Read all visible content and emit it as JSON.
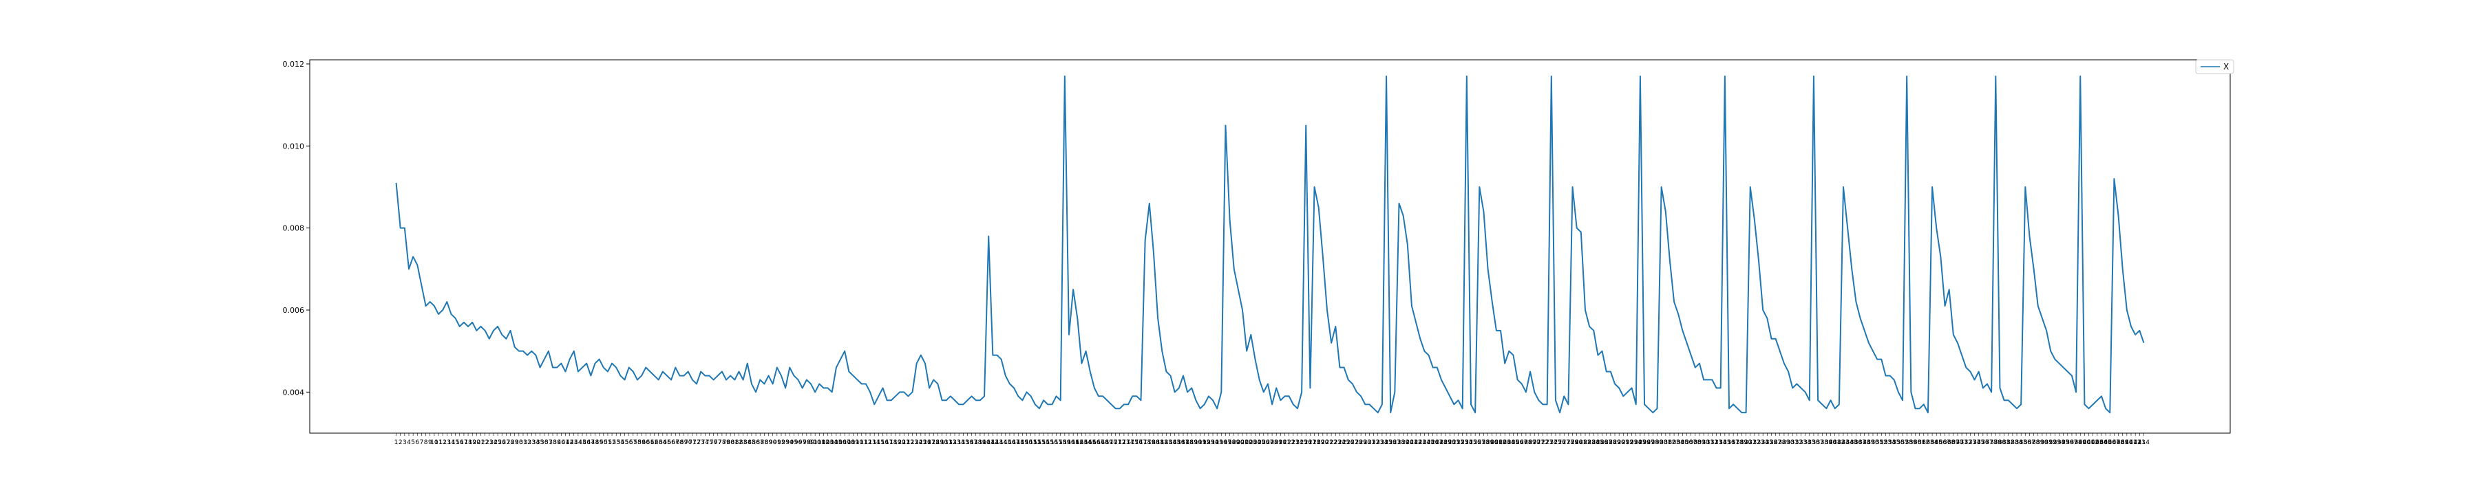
{
  "chart_data": {
    "type": "line",
    "title": "",
    "xlabel": "",
    "ylabel": "",
    "ylim": [
      0.003,
      0.0121
    ],
    "yticks": [
      0.004,
      0.006,
      0.008,
      0.01,
      0.012
    ],
    "ytick_labels": [
      "0.004",
      "0.006",
      "0.008",
      "0.010",
      "0.012"
    ],
    "grid": false,
    "legend": {
      "position": "top-right",
      "entries": [
        "X"
      ]
    },
    "colors": {
      "series": "#1f77b4",
      "axes": "#000000",
      "background": "#ffffff"
    },
    "series": [
      {
        "name": "X",
        "x_start": 1,
        "values": [
          0.0091,
          0.008,
          0.008,
          0.007,
          0.0073,
          0.0071,
          0.0066,
          0.0061,
          0.0062,
          0.0061,
          0.0059,
          0.006,
          0.0062,
          0.0059,
          0.0058,
          0.0056,
          0.0057,
          0.0056,
          0.0057,
          0.0055,
          0.0056,
          0.0055,
          0.0053,
          0.0055,
          0.0056,
          0.0054,
          0.0053,
          0.0055,
          0.0051,
          0.005,
          0.005,
          0.0049,
          0.005,
          0.0049,
          0.0046,
          0.0048,
          0.005,
          0.0046,
          0.0046,
          0.0047,
          0.0045,
          0.0048,
          0.005,
          0.0045,
          0.0046,
          0.0047,
          0.0044,
          0.0047,
          0.0048,
          0.0046,
          0.0045,
          0.0047,
          0.0046,
          0.0044,
          0.0043,
          0.0046,
          0.0045,
          0.0043,
          0.0044,
          0.0046,
          0.0045,
          0.0044,
          0.0043,
          0.0045,
          0.0044,
          0.0043,
          0.0046,
          0.0044,
          0.0044,
          0.0045,
          0.0043,
          0.0042,
          0.0045,
          0.0044,
          0.0044,
          0.0043,
          0.0044,
          0.0045,
          0.0043,
          0.0044,
          0.0043,
          0.0045,
          0.0043,
          0.0047,
          0.0042,
          0.004,
          0.0043,
          0.0042,
          0.0044,
          0.0042,
          0.0046,
          0.0044,
          0.0041,
          0.0046,
          0.0044,
          0.0043,
          0.0041,
          0.0043,
          0.0042,
          0.004,
          0.0042,
          0.0041,
          0.0041,
          0.004,
          0.0046,
          0.0048,
          0.005,
          0.0045,
          0.0044,
          0.0043,
          0.0042,
          0.0042,
          0.004,
          0.0037,
          0.0039,
          0.0041,
          0.0038,
          0.0038,
          0.0039,
          0.004,
          0.004,
          0.0039,
          0.004,
          0.0047,
          0.0049,
          0.0047,
          0.0041,
          0.0043,
          0.0042,
          0.0038,
          0.0038,
          0.0039,
          0.0038,
          0.0037,
          0.0037,
          0.0038,
          0.0039,
          0.0038,
          0.0038,
          0.0039,
          0.0078,
          0.0049,
          0.0049,
          0.0048,
          0.0044,
          0.0042,
          0.0041,
          0.0039,
          0.0038,
          0.004,
          0.0039,
          0.0037,
          0.0036,
          0.0038,
          0.0037,
          0.0037,
          0.0039,
          0.0038,
          0.0117,
          0.0054,
          0.0065,
          0.0058,
          0.0047,
          0.005,
          0.0045,
          0.0041,
          0.0039,
          0.0039,
          0.0038,
          0.0037,
          0.0036,
          0.0036,
          0.0037,
          0.0037,
          0.0039,
          0.0039,
          0.0038,
          0.0077,
          0.0086,
          0.0074,
          0.0058,
          0.005,
          0.0045,
          0.0044,
          0.004,
          0.0041,
          0.0044,
          0.004,
          0.0041,
          0.0038,
          0.0036,
          0.0037,
          0.0039,
          0.0038,
          0.0036,
          0.004,
          0.0105,
          0.0082,
          0.007,
          0.0065,
          0.006,
          0.005,
          0.0054,
          0.0048,
          0.0043,
          0.004,
          0.0042,
          0.0037,
          0.0041,
          0.0038,
          0.0039,
          0.0039,
          0.0037,
          0.0036,
          0.004,
          0.0105,
          0.0041,
          0.009,
          0.0085,
          0.0073,
          0.006,
          0.0052,
          0.0056,
          0.0046,
          0.0046,
          0.0043,
          0.0042,
          0.004,
          0.0039,
          0.0037,
          0.0037,
          0.0036,
          0.0035,
          0.0037,
          0.0117,
          0.0035,
          0.004,
          0.0086,
          0.0083,
          0.0076,
          0.0061,
          0.0057,
          0.0053,
          0.005,
          0.0049,
          0.0046,
          0.0046,
          0.0043,
          0.0041,
          0.0039,
          0.0037,
          0.0038,
          0.0036,
          0.0117,
          0.0037,
          0.0035,
          0.009,
          0.0084,
          0.007,
          0.0062,
          0.0055,
          0.0055,
          0.0047,
          0.005,
          0.0049,
          0.0043,
          0.0042,
          0.004,
          0.0045,
          0.004,
          0.0038,
          0.0037,
          0.0037,
          0.0117,
          0.0038,
          0.0035,
          0.0039,
          0.0037,
          0.009,
          0.008,
          0.0079,
          0.006,
          0.0056,
          0.0055,
          0.0049,
          0.005,
          0.0045,
          0.0045,
          0.0042,
          0.0041,
          0.0039,
          0.004,
          0.0041,
          0.0037,
          0.0117,
          0.0037,
          0.0036,
          0.0035,
          0.0036,
          0.009,
          0.0084,
          0.0072,
          0.0062,
          0.0059,
          0.0055,
          0.0052,
          0.0049,
          0.0046,
          0.0047,
          0.0043,
          0.0043,
          0.0043,
          0.0041,
          0.0041,
          0.0117,
          0.0036,
          0.0037,
          0.0036,
          0.0035,
          0.0035,
          0.009,
          0.0082,
          0.0072,
          0.006,
          0.0058,
          0.0053,
          0.0053,
          0.005,
          0.0047,
          0.0045,
          0.0041,
          0.0042,
          0.0041,
          0.004,
          0.0038,
          0.0117,
          0.0038,
          0.0037,
          0.0036,
          0.0038,
          0.0036,
          0.0037,
          0.009,
          0.008,
          0.007,
          0.0062,
          0.0058,
          0.0055,
          0.0052,
          0.005,
          0.0048,
          0.0048,
          0.0044,
          0.0044,
          0.0043,
          0.004,
          0.0038,
          0.0117,
          0.004,
          0.0036,
          0.0036,
          0.0037,
          0.0035,
          0.009,
          0.008,
          0.0073,
          0.0061,
          0.0065,
          0.0054,
          0.0052,
          0.0049,
          0.0046,
          0.0045,
          0.0043,
          0.0045,
          0.0041,
          0.0042,
          0.004,
          0.0117,
          0.0041,
          0.0038,
          0.0038,
          0.0037,
          0.0036,
          0.0037,
          0.009,
          0.0078,
          0.007,
          0.0061,
          0.0058,
          0.0055,
          0.005,
          0.0048,
          0.0047,
          0.0046,
          0.0045,
          0.0044,
          0.004,
          0.0117,
          0.0037,
          0.0036,
          0.0037,
          0.0038,
          0.0039,
          0.0036,
          0.0035,
          0.0092,
          0.0083,
          0.007,
          0.006,
          0.0056,
          0.0054,
          0.0055,
          0.0052
        ]
      }
    ]
  }
}
